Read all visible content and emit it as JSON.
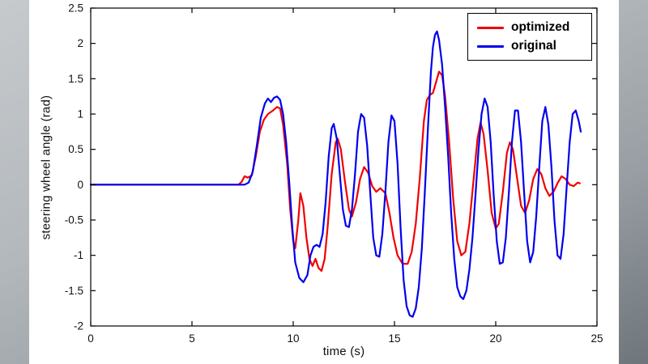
{
  "chart_data": {
    "type": "line",
    "title": "",
    "xlabel": "time (s)",
    "ylabel": "steering wheel angle (rad)",
    "xlim": [
      0,
      25
    ],
    "ylim": [
      -2,
      2.5
    ],
    "xticks": [
      0,
      5,
      10,
      15,
      20,
      25
    ],
    "yticks": [
      -2,
      -1.5,
      -1,
      -0.5,
      0,
      0.5,
      1,
      1.5,
      2,
      2.5
    ],
    "grid": false,
    "legend": {
      "position": "top-right",
      "border": true
    },
    "axis_color": "#000000",
    "background_color": "#ffffff",
    "series": [
      {
        "name": "optimized",
        "color": "#f00000",
        "points": [
          [
            0,
            0
          ],
          [
            7.3,
            0
          ],
          [
            7.45,
            0.04
          ],
          [
            7.6,
            0.12
          ],
          [
            7.75,
            0.1
          ],
          [
            7.95,
            0.13
          ],
          [
            8.15,
            0.4
          ],
          [
            8.35,
            0.75
          ],
          [
            8.55,
            0.92
          ],
          [
            8.75,
            1.0
          ],
          [
            9.0,
            1.05
          ],
          [
            9.2,
            1.1
          ],
          [
            9.35,
            1.08
          ],
          [
            9.5,
            0.85
          ],
          [
            9.7,
            0.3
          ],
          [
            9.85,
            -0.35
          ],
          [
            10.0,
            -0.8
          ],
          [
            10.1,
            -0.9
          ],
          [
            10.25,
            -0.5
          ],
          [
            10.35,
            -0.12
          ],
          [
            10.5,
            -0.3
          ],
          [
            10.65,
            -0.75
          ],
          [
            10.8,
            -1.05
          ],
          [
            10.95,
            -1.15
          ],
          [
            11.1,
            -1.05
          ],
          [
            11.25,
            -1.18
          ],
          [
            11.4,
            -1.22
          ],
          [
            11.55,
            -1.05
          ],
          [
            11.7,
            -0.6
          ],
          [
            11.9,
            0.15
          ],
          [
            12.1,
            0.6
          ],
          [
            12.2,
            0.65
          ],
          [
            12.35,
            0.5
          ],
          [
            12.55,
            0.05
          ],
          [
            12.75,
            -0.35
          ],
          [
            12.9,
            -0.45
          ],
          [
            13.1,
            -0.25
          ],
          [
            13.3,
            0.08
          ],
          [
            13.5,
            0.25
          ],
          [
            13.7,
            0.17
          ],
          [
            13.9,
            -0.02
          ],
          [
            14.1,
            -0.1
          ],
          [
            14.3,
            -0.05
          ],
          [
            14.55,
            -0.12
          ],
          [
            14.75,
            -0.4
          ],
          [
            14.95,
            -0.75
          ],
          [
            15.15,
            -1.0
          ],
          [
            15.4,
            -1.12
          ],
          [
            15.65,
            -1.12
          ],
          [
            15.85,
            -0.95
          ],
          [
            16.05,
            -0.55
          ],
          [
            16.25,
            0.1
          ],
          [
            16.45,
            0.9
          ],
          [
            16.6,
            1.2
          ],
          [
            16.75,
            1.27
          ],
          [
            16.9,
            1.3
          ],
          [
            17.05,
            1.45
          ],
          [
            17.2,
            1.6
          ],
          [
            17.35,
            1.55
          ],
          [
            17.5,
            1.25
          ],
          [
            17.7,
            0.6
          ],
          [
            17.9,
            -0.2
          ],
          [
            18.1,
            -0.8
          ],
          [
            18.3,
            -1.0
          ],
          [
            18.5,
            -0.95
          ],
          [
            18.7,
            -0.55
          ],
          [
            18.9,
            0.05
          ],
          [
            19.1,
            0.65
          ],
          [
            19.25,
            0.88
          ],
          [
            19.4,
            0.72
          ],
          [
            19.6,
            0.2
          ],
          [
            19.8,
            -0.4
          ],
          [
            20.0,
            -0.62
          ],
          [
            20.15,
            -0.55
          ],
          [
            20.35,
            -0.1
          ],
          [
            20.55,
            0.45
          ],
          [
            20.7,
            0.6
          ],
          [
            20.85,
            0.5
          ],
          [
            21.05,
            0.1
          ],
          [
            21.25,
            -0.3
          ],
          [
            21.45,
            -0.4
          ],
          [
            21.65,
            -0.22
          ],
          [
            21.85,
            0.08
          ],
          [
            22.05,
            0.22
          ],
          [
            22.25,
            0.15
          ],
          [
            22.45,
            -0.05
          ],
          [
            22.65,
            -0.16
          ],
          [
            22.85,
            -0.1
          ],
          [
            23.05,
            0.02
          ],
          [
            23.25,
            0.12
          ],
          [
            23.45,
            0.08
          ],
          [
            23.65,
            0.0
          ],
          [
            23.85,
            -0.02
          ],
          [
            24.05,
            0.03
          ],
          [
            24.15,
            0.02
          ]
        ]
      },
      {
        "name": "original",
        "color": "#0000ee",
        "points": [
          [
            0,
            0
          ],
          [
            7.6,
            0
          ],
          [
            7.8,
            0.03
          ],
          [
            8.0,
            0.18
          ],
          [
            8.2,
            0.55
          ],
          [
            8.4,
            0.95
          ],
          [
            8.6,
            1.15
          ],
          [
            8.75,
            1.22
          ],
          [
            8.9,
            1.17
          ],
          [
            9.05,
            1.23
          ],
          [
            9.2,
            1.25
          ],
          [
            9.35,
            1.2
          ],
          [
            9.5,
            1.0
          ],
          [
            9.65,
            0.6
          ],
          [
            9.8,
            0.05
          ],
          [
            9.95,
            -0.6
          ],
          [
            10.1,
            -1.1
          ],
          [
            10.3,
            -1.32
          ],
          [
            10.5,
            -1.38
          ],
          [
            10.7,
            -1.28
          ],
          [
            10.85,
            -1.0
          ],
          [
            11.0,
            -0.88
          ],
          [
            11.15,
            -0.85
          ],
          [
            11.3,
            -0.88
          ],
          [
            11.45,
            -0.7
          ],
          [
            11.6,
            -0.25
          ],
          [
            11.75,
            0.4
          ],
          [
            11.9,
            0.8
          ],
          [
            12.0,
            0.86
          ],
          [
            12.15,
            0.65
          ],
          [
            12.3,
            0.15
          ],
          [
            12.45,
            -0.35
          ],
          [
            12.6,
            -0.58
          ],
          [
            12.75,
            -0.6
          ],
          [
            12.9,
            -0.35
          ],
          [
            13.05,
            0.15
          ],
          [
            13.2,
            0.75
          ],
          [
            13.35,
            1.0
          ],
          [
            13.5,
            0.95
          ],
          [
            13.65,
            0.55
          ],
          [
            13.8,
            -0.1
          ],
          [
            13.95,
            -0.75
          ],
          [
            14.1,
            -1.0
          ],
          [
            14.25,
            -1.02
          ],
          [
            14.4,
            -0.7
          ],
          [
            14.55,
            -0.1
          ],
          [
            14.7,
            0.6
          ],
          [
            14.85,
            0.98
          ],
          [
            15.0,
            0.9
          ],
          [
            15.15,
            0.3
          ],
          [
            15.3,
            -0.6
          ],
          [
            15.45,
            -1.35
          ],
          [
            15.6,
            -1.72
          ],
          [
            15.75,
            -1.85
          ],
          [
            15.9,
            -1.87
          ],
          [
            16.05,
            -1.75
          ],
          [
            16.2,
            -1.45
          ],
          [
            16.35,
            -0.9
          ],
          [
            16.5,
            -0.1
          ],
          [
            16.65,
            0.8
          ],
          [
            16.8,
            1.6
          ],
          [
            16.9,
            1.95
          ],
          [
            17.0,
            2.12
          ],
          [
            17.1,
            2.17
          ],
          [
            17.2,
            2.05
          ],
          [
            17.35,
            1.7
          ],
          [
            17.5,
            1.1
          ],
          [
            17.65,
            0.4
          ],
          [
            17.8,
            -0.4
          ],
          [
            17.95,
            -1.05
          ],
          [
            18.1,
            -1.45
          ],
          [
            18.25,
            -1.58
          ],
          [
            18.4,
            -1.62
          ],
          [
            18.55,
            -1.5
          ],
          [
            18.7,
            -1.2
          ],
          [
            18.85,
            -0.75
          ],
          [
            19.0,
            -0.15
          ],
          [
            19.15,
            0.5
          ],
          [
            19.3,
            1.0
          ],
          [
            19.45,
            1.22
          ],
          [
            19.6,
            1.1
          ],
          [
            19.75,
            0.6
          ],
          [
            19.9,
            -0.15
          ],
          [
            20.05,
            -0.8
          ],
          [
            20.2,
            -1.12
          ],
          [
            20.35,
            -1.1
          ],
          [
            20.5,
            -0.75
          ],
          [
            20.65,
            -0.1
          ],
          [
            20.8,
            0.6
          ],
          [
            20.95,
            1.05
          ],
          [
            21.1,
            1.05
          ],
          [
            21.25,
            0.6
          ],
          [
            21.4,
            -0.1
          ],
          [
            21.55,
            -0.8
          ],
          [
            21.7,
            -1.1
          ],
          [
            21.85,
            -0.95
          ],
          [
            22.0,
            -0.45
          ],
          [
            22.15,
            0.25
          ],
          [
            22.3,
            0.9
          ],
          [
            22.45,
            1.1
          ],
          [
            22.6,
            0.85
          ],
          [
            22.75,
            0.25
          ],
          [
            22.9,
            -0.5
          ],
          [
            23.05,
            -1.0
          ],
          [
            23.2,
            -1.05
          ],
          [
            23.35,
            -0.7
          ],
          [
            23.5,
            -0.05
          ],
          [
            23.65,
            0.6
          ],
          [
            23.8,
            1.0
          ],
          [
            23.95,
            1.05
          ],
          [
            24.1,
            0.9
          ],
          [
            24.2,
            0.75
          ]
        ]
      }
    ]
  }
}
